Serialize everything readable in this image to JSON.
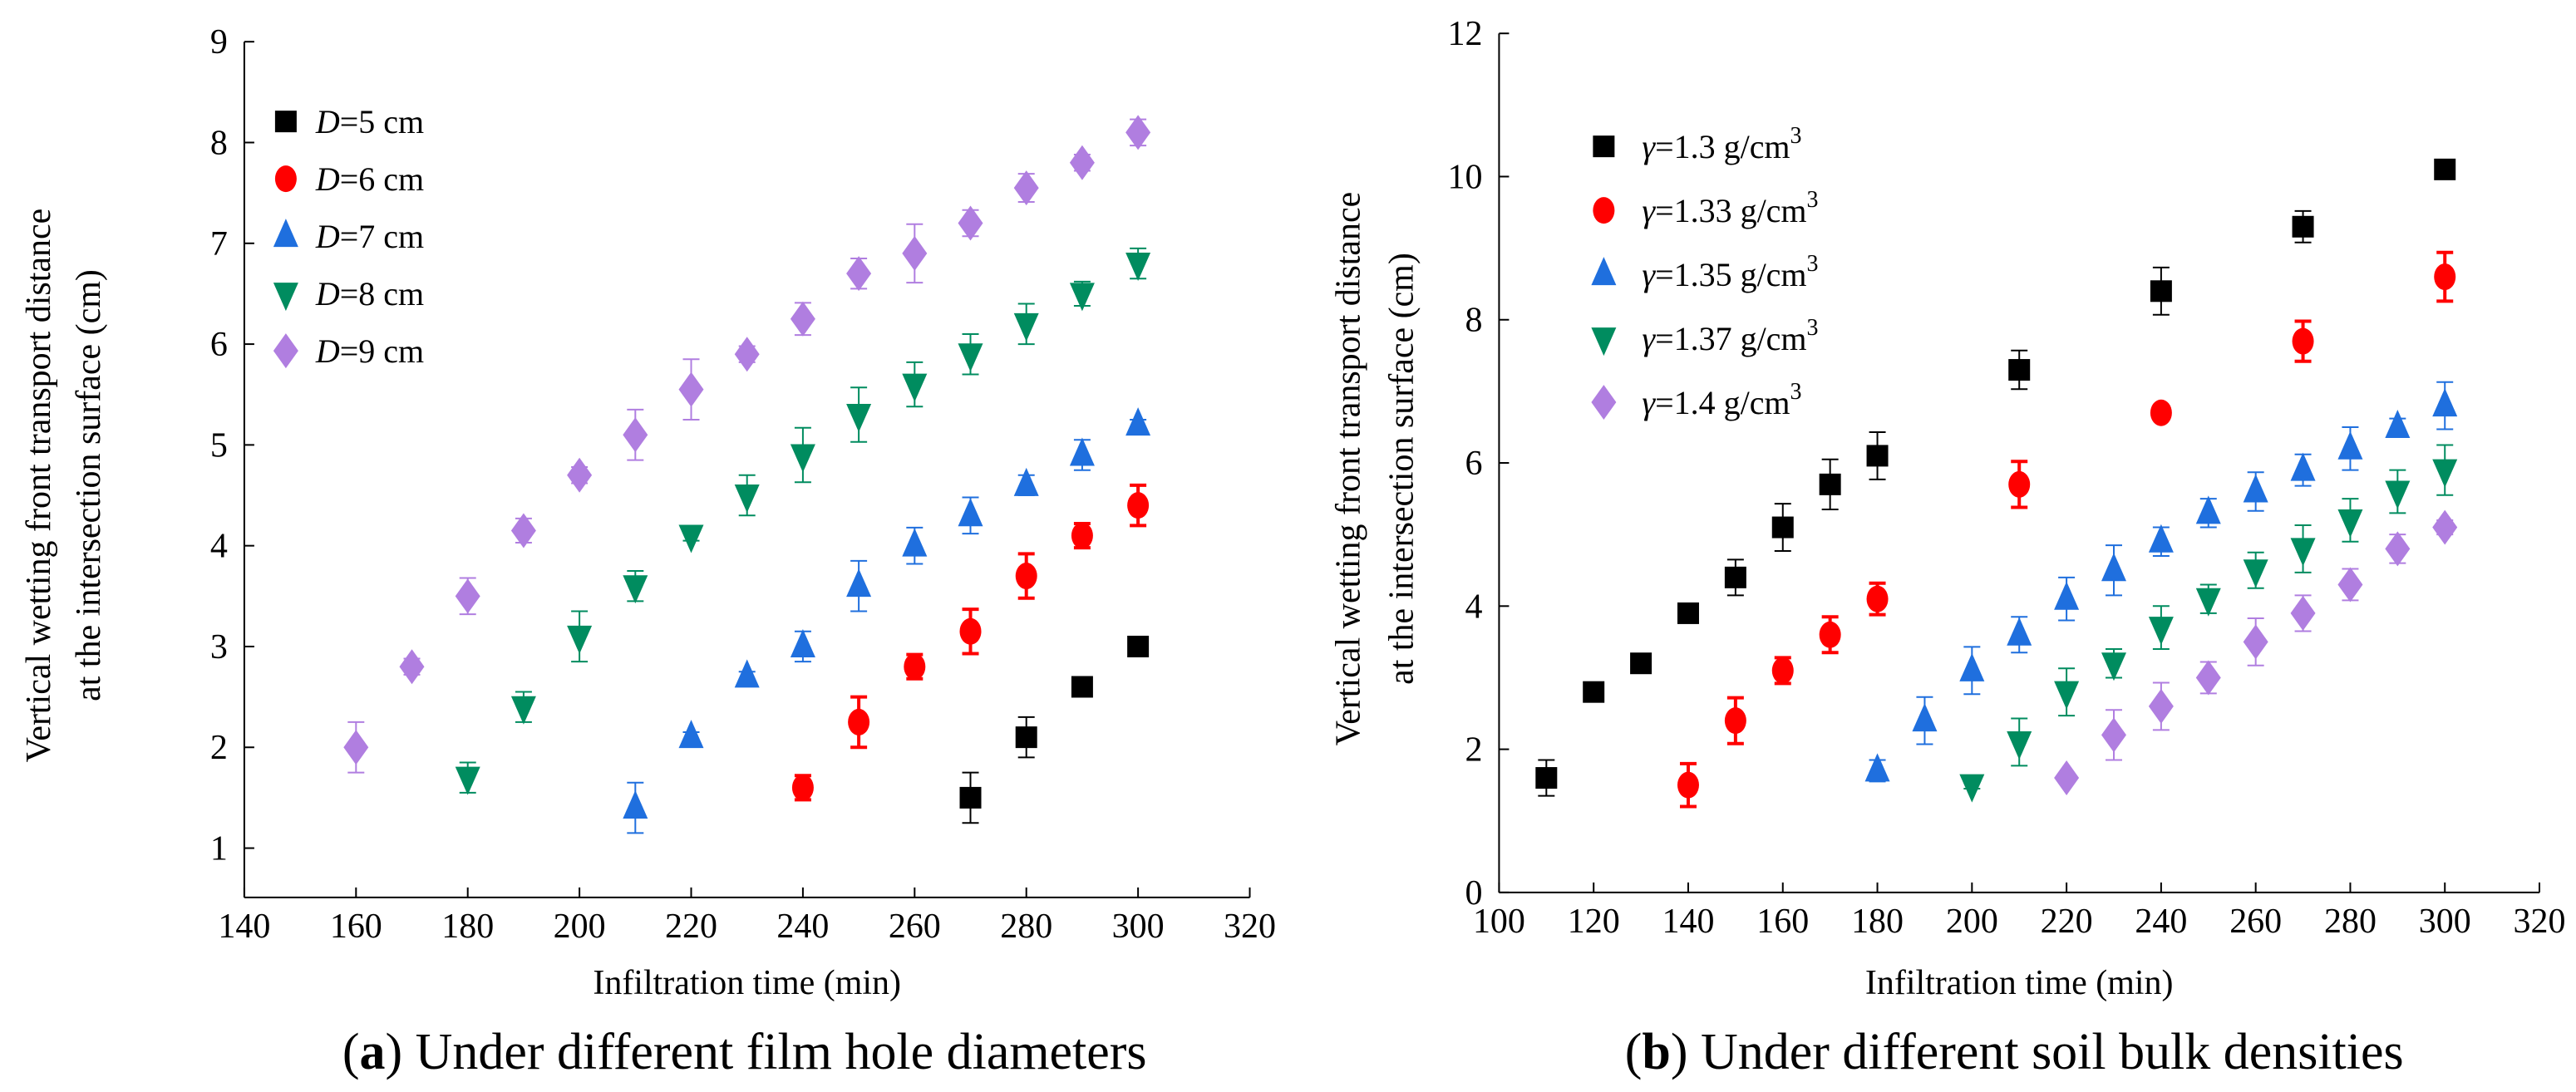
{
  "chart_data": [
    {
      "type": "scatter",
      "id": "a",
      "caption_prefix": "a",
      "caption": "Under different film hole diameters",
      "xlabel": "Infiltration time (min)",
      "ylabel_lines": [
        "Vertical wetting front transport distance",
        "at the intersection surface (cm)"
      ],
      "xlim": [
        140,
        320
      ],
      "ylim": [
        0,
        9
      ],
      "xticks": [
        140,
        160,
        180,
        200,
        220,
        240,
        260,
        280,
        300,
        320
      ],
      "yticks": [
        1,
        2,
        3,
        4,
        5,
        6,
        7,
        8,
        9
      ],
      "grid": false,
      "legend_placement": "top-left",
      "series": [
        {
          "name_italic": "D",
          "name_rest": "=5 cm",
          "marker": "square",
          "color": "#000000",
          "x": [
            270,
            280,
            290,
            300
          ],
          "y": [
            1.5,
            2.1,
            2.6,
            3.0
          ],
          "err": [
            0.25,
            0.2,
            0.05,
            0.05
          ]
        },
        {
          "name_italic": "D",
          "name_rest": "=6 cm",
          "marker": "circle",
          "color": "#ff0000",
          "x": [
            240,
            250,
            260,
            270,
            280,
            290,
            300
          ],
          "y": [
            1.6,
            2.25,
            2.8,
            3.15,
            3.7,
            4.1,
            4.4
          ],
          "err": [
            0.12,
            0.25,
            0.12,
            0.22,
            0.22,
            0.12,
            0.2
          ]
        },
        {
          "name_italic": "D",
          "name_rest": "=7 cm",
          "marker": "triangle-up",
          "color": "#1f6fde",
          "x": [
            210,
            220,
            230,
            240,
            250,
            260,
            270,
            280,
            290,
            300
          ],
          "y": [
            1.4,
            2.1,
            2.7,
            3.0,
            3.6,
            4.0,
            4.3,
            4.6,
            4.9,
            5.2
          ],
          "err": [
            0.25,
            0.05,
            0.05,
            0.15,
            0.25,
            0.18,
            0.18,
            0.1,
            0.15,
            0.05
          ]
        },
        {
          "name_italic": "D",
          "name_rest": "=8 cm",
          "marker": "triangle-down",
          "color": "#008c5f",
          "x": [
            180,
            190,
            200,
            210,
            220,
            230,
            240,
            250,
            260,
            270,
            280,
            290,
            300
          ],
          "y": [
            1.7,
            2.4,
            3.1,
            3.6,
            4.1,
            4.5,
            4.9,
            5.3,
            5.6,
            5.9,
            6.2,
            6.5,
            6.8
          ],
          "err": [
            0.15,
            0.15,
            0.25,
            0.15,
            0.05,
            0.2,
            0.27,
            0.27,
            0.22,
            0.2,
            0.2,
            0.12,
            0.15
          ]
        },
        {
          "name_italic": "D",
          "name_rest": "=9 cm",
          "marker": "diamond",
          "color": "#b07ee0",
          "x": [
            160,
            170,
            180,
            190,
            200,
            210,
            220,
            230,
            240,
            250,
            260,
            270,
            280,
            290,
            300
          ],
          "y": [
            2.0,
            2.8,
            3.5,
            4.15,
            4.7,
            5.1,
            5.55,
            5.9,
            6.25,
            6.7,
            6.9,
            7.2,
            7.55,
            7.8,
            8.1
          ],
          "err": [
            0.25,
            0.08,
            0.18,
            0.12,
            0.08,
            0.25,
            0.3,
            0.08,
            0.16,
            0.15,
            0.29,
            0.13,
            0.14,
            0.08,
            0.13
          ]
        }
      ]
    },
    {
      "type": "scatter",
      "id": "b",
      "caption_prefix": "b",
      "caption": "Under different soil bulk densities",
      "xlabel": "Infiltration time (min)",
      "ylabel_lines": [
        "Vertical wetting front transport distance",
        "at the intersection surface (cm)"
      ],
      "xlim": [
        100,
        320
      ],
      "ylim": [
        0,
        12
      ],
      "xticks": [
        100,
        120,
        140,
        160,
        180,
        200,
        220,
        240,
        260,
        280,
        300,
        320
      ],
      "yticks": [
        0,
        2,
        4,
        6,
        8,
        10,
        12
      ],
      "grid": false,
      "legend_placement": "top-left",
      "series": [
        {
          "name_italic": "γ",
          "name_rest": "=1.3 g/cm",
          "name_sup": "3",
          "marker": "square",
          "color": "#000000",
          "x": [
            110,
            120,
            130,
            140,
            150,
            160,
            170,
            180,
            210,
            240,
            270,
            300
          ],
          "y": [
            1.6,
            2.8,
            3.2,
            3.9,
            4.4,
            5.1,
            5.7,
            6.1,
            7.3,
            8.4,
            9.3,
            10.1
          ],
          "err": [
            0.25,
            0.1,
            0.05,
            0.12,
            0.25,
            0.33,
            0.35,
            0.33,
            0.27,
            0.33,
            0.22,
            0.05
          ]
        },
        {
          "name_italic": "γ",
          "name_rest": "=1.33 g/cm",
          "name_sup": "3",
          "marker": "circle",
          "color": "#ff0000",
          "x": [
            140,
            150,
            160,
            170,
            180,
            210,
            240,
            270,
            300
          ],
          "y": [
            1.5,
            2.4,
            3.1,
            3.6,
            4.1,
            5.7,
            6.7,
            7.7,
            8.6
          ],
          "err": [
            0.3,
            0.32,
            0.18,
            0.25,
            0.22,
            0.32,
            0.08,
            0.28,
            0.34
          ]
        },
        {
          "name_italic": "γ",
          "name_rest": "=1.35 g/cm",
          "name_sup": "3",
          "marker": "triangle-up",
          "color": "#1f6fde",
          "x": [
            180,
            190,
            200,
            210,
            220,
            230,
            240,
            250,
            260,
            270,
            280,
            290,
            300
          ],
          "y": [
            1.7,
            2.4,
            3.1,
            3.6,
            4.1,
            4.5,
            4.9,
            5.3,
            5.6,
            5.9,
            6.2,
            6.5,
            6.8
          ],
          "err": [
            0.15,
            0.33,
            0.33,
            0.25,
            0.3,
            0.35,
            0.2,
            0.2,
            0.27,
            0.22,
            0.3,
            0.12,
            0.33
          ]
        },
        {
          "name_italic": "γ",
          "name_rest": "=1.37 g/cm",
          "name_sup": "3",
          "marker": "triangle-down",
          "color": "#008c5f",
          "x": [
            200,
            210,
            220,
            230,
            240,
            250,
            260,
            270,
            280,
            290,
            300
          ],
          "y": [
            1.5,
            2.1,
            2.8,
            3.2,
            3.7,
            4.1,
            4.5,
            4.8,
            5.2,
            5.6,
            5.9
          ],
          "err": [
            0.05,
            0.33,
            0.33,
            0.2,
            0.3,
            0.2,
            0.25,
            0.33,
            0.3,
            0.3,
            0.35
          ]
        },
        {
          "name_italic": "γ",
          "name_rest": "=1.4 g/cm",
          "name_sup": "3",
          "marker": "diamond",
          "color": "#b07ee0",
          "x": [
            220,
            230,
            240,
            250,
            260,
            270,
            280,
            290,
            300
          ],
          "y": [
            1.6,
            2.2,
            2.6,
            3.0,
            3.5,
            3.9,
            4.3,
            4.8,
            5.1
          ],
          "err": [
            0.05,
            0.35,
            0.33,
            0.22,
            0.33,
            0.25,
            0.22,
            0.2,
            0.1
          ]
        }
      ]
    }
  ]
}
